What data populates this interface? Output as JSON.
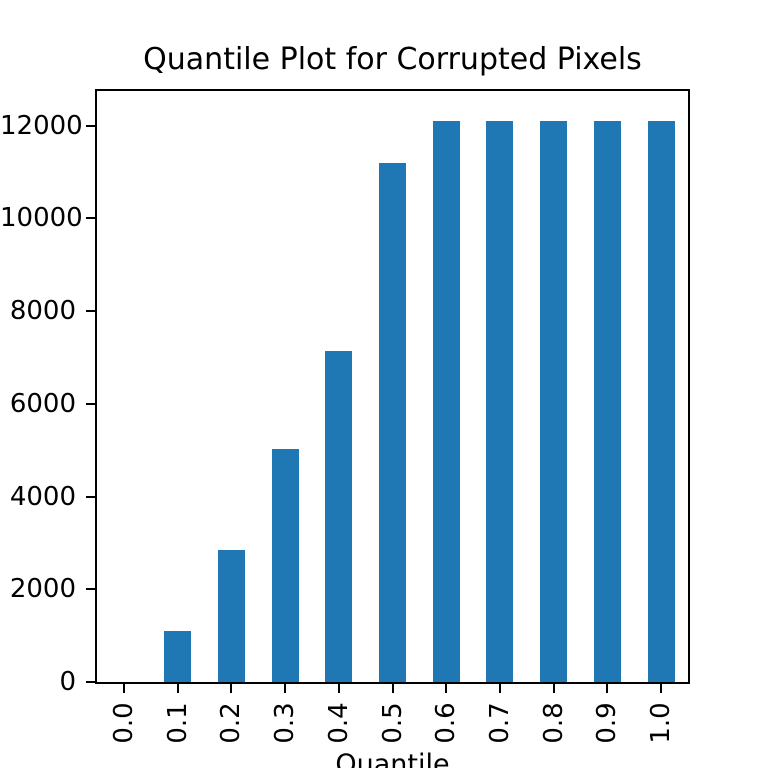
{
  "chart_data": {
    "type": "bar",
    "title": "Quantile Plot for Corrupted Pixels",
    "xlabel": "Quantile",
    "ylabel": "",
    "categories": [
      "0.0",
      "0.1",
      "0.2",
      "0.3",
      "0.4",
      "0.5",
      "0.6",
      "0.7",
      "0.8",
      "0.9",
      "1.0"
    ],
    "values": [
      0,
      1110,
      2850,
      5030,
      7150,
      11200,
      12100,
      12100,
      12100,
      12100,
      12100
    ],
    "yticks": [
      0,
      2000,
      4000,
      6000,
      8000,
      10000,
      12000
    ],
    "ylim": [
      0,
      12750
    ],
    "bar_color": "#1f77b4",
    "axis_color": "#000000",
    "text_color": "#000000",
    "background_color": "#ffffff",
    "grid": false,
    "legend_position": "none",
    "x_tick_rotation": 90,
    "bar_relative_width": 0.5
  }
}
